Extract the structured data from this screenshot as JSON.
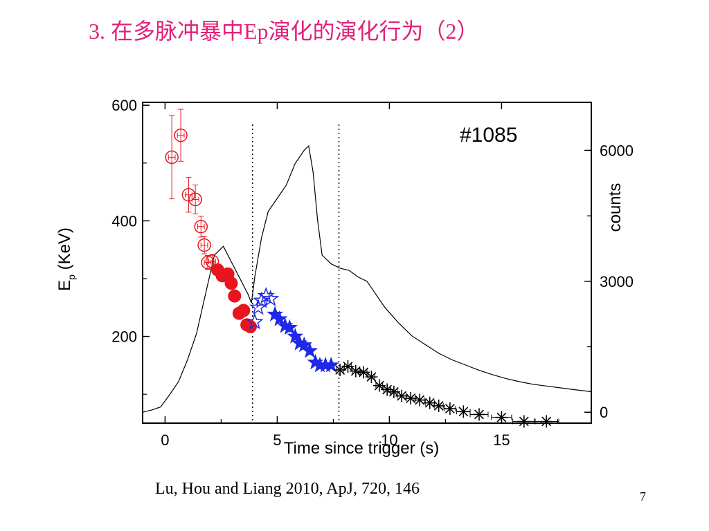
{
  "slide": {
    "title": "3. 在多脉冲暴中Ep演化的演化行为（2）",
    "citation": "Lu, Hou and Liang 2010, ApJ, 720, 146",
    "page_number": "7"
  },
  "colors": {
    "title": "#e0217a",
    "red": "#e8141e",
    "blue": "#1f28e6",
    "black": "#000000"
  },
  "chart_data": {
    "type": "scatter",
    "annotation": "#1085",
    "xlabel": "Time since trigger (s)",
    "ylabel": "Ep (KeV)",
    "ylabel_main": "E",
    "ylabel_sub": "p",
    "ylabel_rest": " (KeV)",
    "y2label": "counts",
    "xlim": [
      -1,
      19
    ],
    "ylim": [
      50,
      605
    ],
    "y2lim": [
      -250,
      7100
    ],
    "x_ticks": [
      "0",
      "5",
      "10",
      "15"
    ],
    "y_ticks": [
      "200",
      "400",
      "600"
    ],
    "y2_ticks": [
      "0",
      "3000",
      "6000"
    ],
    "vlines": [
      3.9,
      7.75
    ],
    "series": [
      {
        "marker": "open-circle",
        "color": "#e8141e",
        "x": [
          0.3,
          0.7,
          1.05,
          1.35,
          1.6,
          1.75,
          1.9,
          2.1
        ],
        "y": [
          510,
          548,
          445,
          437,
          390,
          358,
          328,
          330
        ],
        "yerr": [
          72,
          45,
          30,
          25,
          18,
          15,
          12,
          12
        ],
        "xerr": [
          0.15,
          0.15,
          0.15,
          0.15,
          0.15,
          0.15,
          0.15,
          0.15
        ]
      },
      {
        "marker": "filled-circle",
        "color": "#e8141e",
        "x": [
          2.35,
          2.55,
          2.8,
          2.95,
          3.1,
          3.3,
          3.5,
          3.65,
          3.8
        ],
        "y": [
          315,
          305,
          308,
          292,
          270,
          240,
          245,
          220,
          217
        ],
        "yerr": [
          10,
          10,
          10,
          9,
          9,
          8,
          8,
          7,
          7
        ],
        "xerr": [
          0.12,
          0.12,
          0.12,
          0.12,
          0.12,
          0.12,
          0.12,
          0.12,
          0.12
        ]
      },
      {
        "marker": "open-star",
        "color": "#1f28e6",
        "x": [
          4.0,
          4.15,
          4.3,
          4.5,
          4.7
        ],
        "y": [
          225,
          250,
          262,
          270,
          265
        ]
      },
      {
        "marker": "filled-star",
        "color": "#1f28e6",
        "x": [
          4.9,
          5.1,
          5.35,
          5.55,
          5.8,
          6.0,
          6.2,
          6.45,
          6.7,
          6.9,
          7.15,
          7.4
        ],
        "y": [
          238,
          230,
          218,
          215,
          200,
          188,
          185,
          175,
          155,
          150,
          150,
          150
        ],
        "xerr": [
          0.1,
          0.1,
          0.1,
          0.1,
          0.1,
          0.1,
          0.1,
          0.1,
          0.1,
          0.1,
          0.1,
          0.1
        ]
      },
      {
        "marker": "asterisk",
        "color": "#000000",
        "x": [
          7.8,
          8.15,
          8.5,
          8.85,
          9.2,
          9.55,
          9.9,
          10.2,
          10.55,
          10.95,
          11.35,
          11.8,
          12.2,
          12.7,
          13.3,
          14.0,
          15.0,
          16.0,
          17.0
        ],
        "y": [
          142,
          148,
          140,
          138,
          130,
          115,
          108,
          104,
          97,
          93,
          90,
          85,
          80,
          75,
          70,
          65,
          60,
          53,
          53
        ],
        "xerr": [
          0.15,
          0.15,
          0.15,
          0.15,
          0.15,
          0.15,
          0.15,
          0.15,
          0.2,
          0.2,
          0.2,
          0.2,
          0.2,
          0.25,
          0.3,
          0.4,
          0.45,
          0.5,
          0.55
        ]
      }
    ],
    "lightcurve": {
      "t": [
        -1.0,
        -0.6,
        -0.2,
        0.2,
        0.6,
        1.0,
        1.4,
        1.8,
        2.2,
        2.6,
        3.0,
        3.4,
        3.7,
        3.85,
        4.0,
        4.3,
        4.6,
        5.0,
        5.4,
        5.8,
        6.2,
        6.4,
        6.6,
        6.8,
        7.0,
        7.4,
        7.8,
        8.2,
        8.6,
        9.0,
        9.4,
        9.8,
        10.4,
        11.0,
        11.6,
        12.2,
        12.8,
        13.4,
        14.0,
        14.6,
        15.2,
        15.8,
        16.4,
        17.0,
        17.6,
        18.2,
        19.0
      ],
      "counts": [
        0,
        50,
        120,
        400,
        700,
        1200,
        1800,
        2700,
        3600,
        3800,
        3400,
        3000,
        2700,
        2500,
        3100,
        4000,
        4600,
        4900,
        5200,
        5700,
        6000,
        6100,
        5500,
        4400,
        3600,
        3400,
        3300,
        3250,
        3100,
        3000,
        2700,
        2400,
        2050,
        1750,
        1550,
        1350,
        1200,
        1080,
        960,
        860,
        770,
        700,
        640,
        600,
        560,
        520,
        470
      ]
    }
  }
}
